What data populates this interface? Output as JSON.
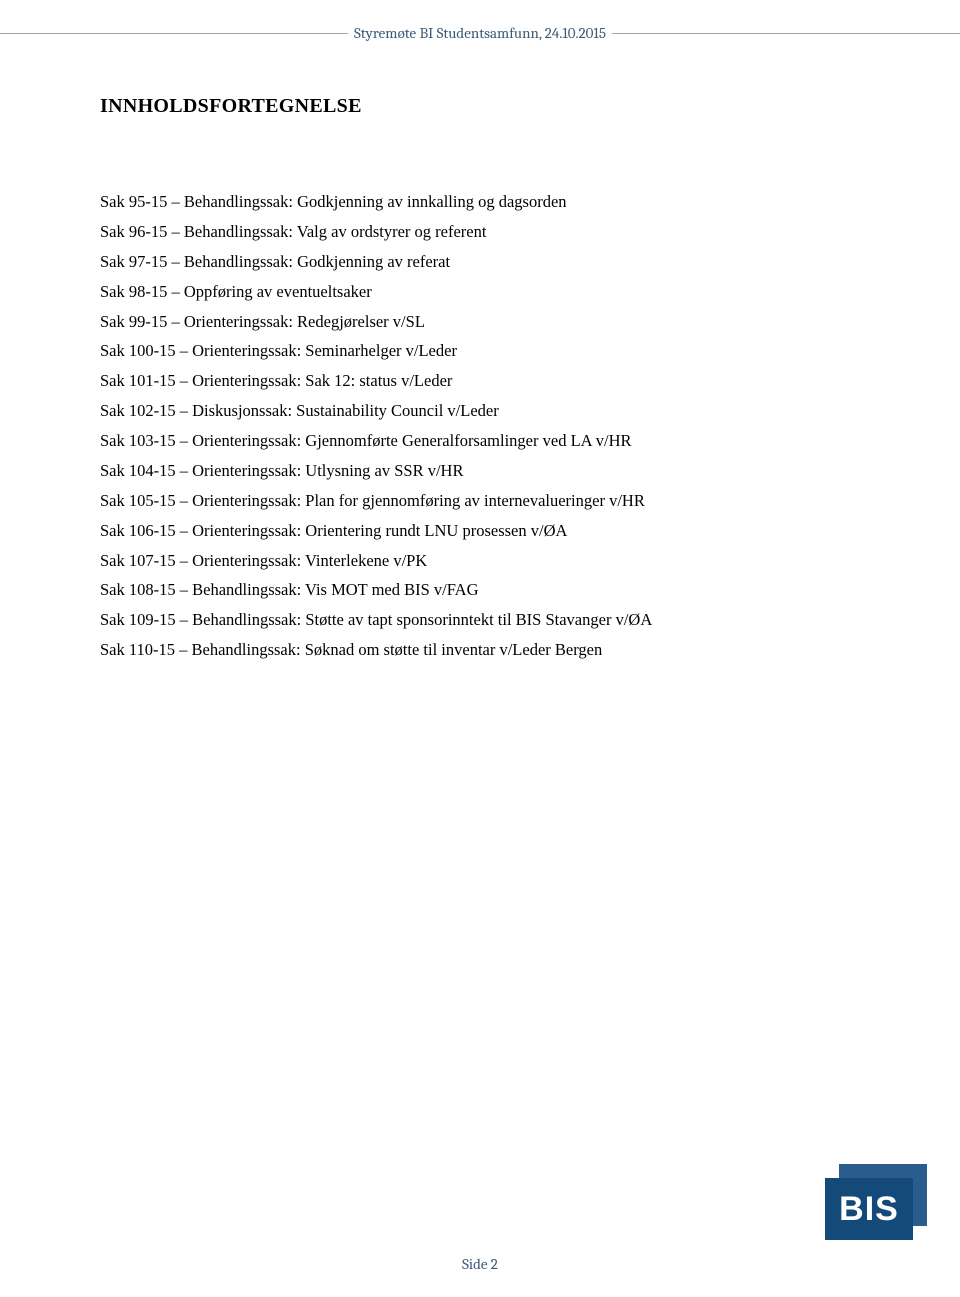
{
  "header": {
    "text": "Styremøte BI Studentsamfunn, 24.10.2015",
    "line_color": "#9aa5b3",
    "text_color": "#3a5a78"
  },
  "title": "INNHOLDSFORTEGNELSE",
  "toc": [
    "Sak 95-15 – Behandlingssak: Godkjenning av innkalling og dagsorden",
    "Sak 96-15 – Behandlingssak: Valg av ordstyrer og referent",
    "Sak 97-15 – Behandlingssak: Godkjenning av referat",
    "Sak 98-15 – Oppføring av eventueltsaker",
    "Sak 99-15 – Orienteringssak: Redegjørelser v/SL",
    "Sak 100-15 – Orienteringssak: Seminarhelger v/Leder",
    "Sak 101-15 – Orienteringssak: Sak 12: status v/Leder",
    "Sak 102-15 – Diskusjonssak: Sustainability Council v/Leder",
    "Sak 103-15 – Orienteringssak: Gjennomførte Generalforsamlinger ved LA v/HR",
    "Sak 104-15 – Orienteringssak: Utlysning av SSR v/HR",
    "Sak 105-15 – Orienteringssak: Plan for gjennomføring av internevalueringer v/HR",
    "Sak 106-15 – Orienteringssak: Orientering rundt LNU prosessen v/ØA",
    "Sak 107-15 – Orienteringssak: Vinterlekene v/PK",
    "Sak 108-15 – Behandlingssak: Vis MOT med BIS v/FAG",
    "Sak 109-15 – Behandlingssak: Støtte av tapt sponsorinntekt til BIS Stavanger v/ØA",
    "Sak 110-15 – Behandlingssak: Søknad om støtte til inventar v/Leder Bergen"
  ],
  "footer": {
    "text": "Side 2",
    "text_color": "#3a5a78"
  },
  "logo": {
    "text": "BIS",
    "back_color": "#2a5c8d",
    "front_color": "#134a7a"
  }
}
